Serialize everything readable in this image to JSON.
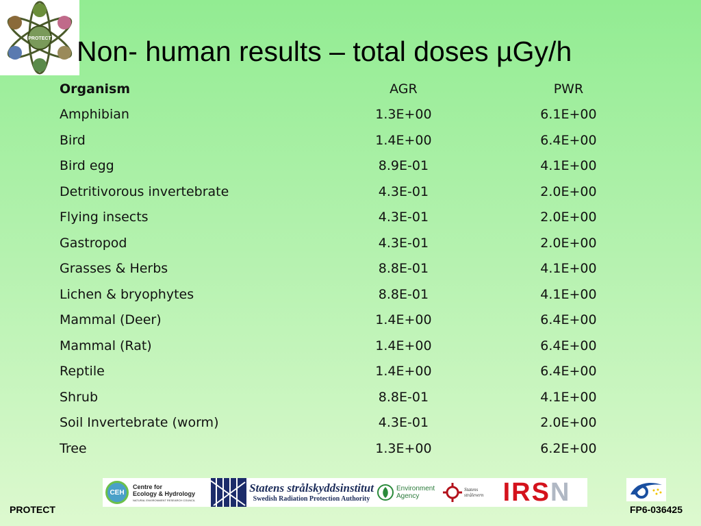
{
  "title": "Non- human results – total doses µGy/h",
  "table": {
    "headers": [
      "Organism",
      "AGR",
      "PWR"
    ],
    "rows": [
      [
        "Amphibian",
        "1.3E+00",
        "6.1E+00"
      ],
      [
        "Bird",
        "1.4E+00",
        "6.4E+00"
      ],
      [
        "Bird egg",
        "8.9E-01",
        "4.1E+00"
      ],
      [
        "Detritivorous invertebrate",
        "4.3E-01",
        "2.0E+00"
      ],
      [
        "Flying insects",
        "4.3E-01",
        "2.0E+00"
      ],
      [
        "Gastropod",
        "4.3E-01",
        "2.0E+00"
      ],
      [
        "Grasses & Herbs",
        "8.8E-01",
        "4.1E+00"
      ],
      [
        "Lichen & bryophytes",
        "8.8E-01",
        "4.1E+00"
      ],
      [
        "Mammal (Deer)",
        "1.4E+00",
        "6.4E+00"
      ],
      [
        "Mammal (Rat)",
        "1.4E+00",
        "6.4E+00"
      ],
      [
        "Reptile",
        "1.4E+00",
        "6.4E+00"
      ],
      [
        "Shrub",
        "8.8E-01",
        "4.1E+00"
      ],
      [
        "Soil Invertebrate (worm)",
        "4.3E-01",
        "2.0E+00"
      ],
      [
        "Tree",
        "1.3E+00",
        "6.2E+00"
      ]
    ]
  },
  "logos": {
    "protect_logo_text": "PROTECT",
    "ceh_abbrev": "CEH",
    "ceh_line1": "Centre for",
    "ceh_line2": "Ecology & Hydrology",
    "ceh_line3": "NATURAL ENVIRONMENT RESEARCH COUNCIL",
    "ssi_line1": "Statens strålskyddsinstitut",
    "ssi_line2": "Swedish Radiation Protection Authority",
    "ea_line1": "Environment",
    "ea_line2": "Agency",
    "ssv_line1": "Statens",
    "ssv_line2": "strålevern",
    "irsn_main": "IRS",
    "irsn_tail": "N"
  },
  "footer": {
    "left": "PROTECT",
    "right": "FP6-036425"
  },
  "colors": {
    "background_top": "#92ec92",
    "background_bottom": "#ddf9cf",
    "irsn_red": "#d4121c",
    "fp6_blue": "#1a4fa0"
  },
  "icons": [
    "protect-logo-icon",
    "ceh-logo-icon",
    "ssi-logo-icon",
    "environment-agency-logo-icon",
    "statens-stralevern-logo-icon",
    "fp6-logo-icon"
  ]
}
